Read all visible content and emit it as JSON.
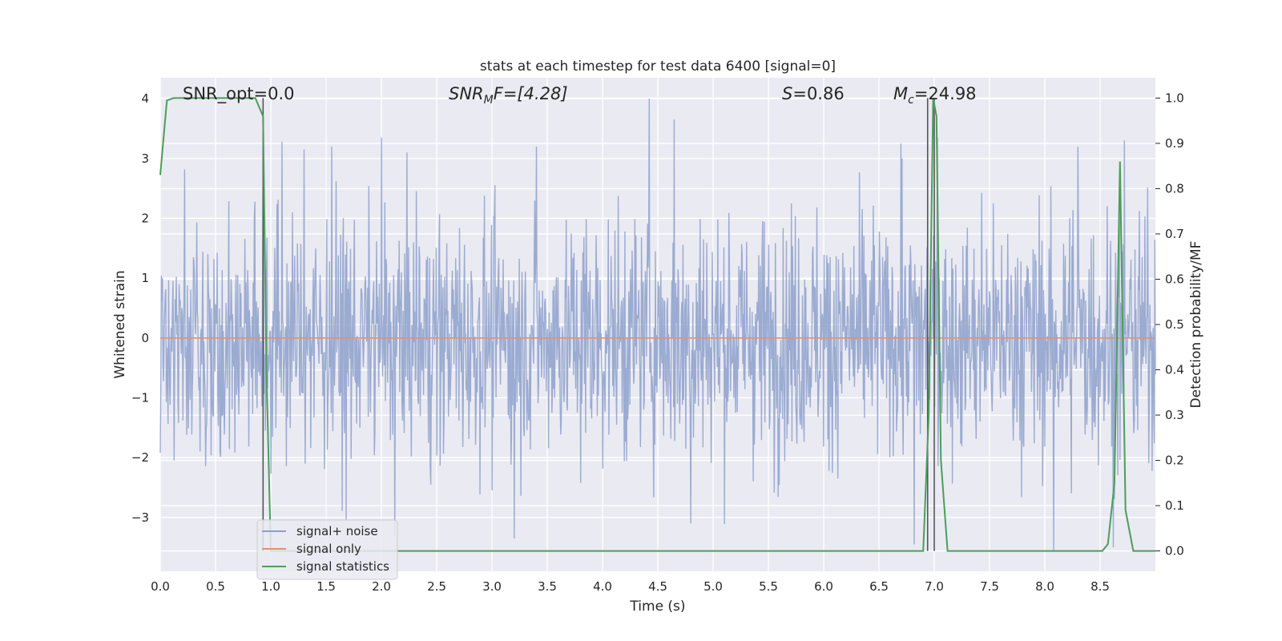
{
  "chart_data": {
    "type": "line",
    "title": "stats at each timestep for test data 6400 [signal=0]",
    "xlabel": "Time (s)",
    "ylabel": "Whitened strain",
    "y2label": "Detection probability/MF",
    "xlim": [
      0,
      9
    ],
    "ylim": [
      -3.9,
      4.35
    ],
    "y2lim": [
      -0.045,
      1.045
    ],
    "xticks": [
      "0.0",
      "0.5",
      "1.0",
      "1.5",
      "2.0",
      "2.5",
      "3.0",
      "3.5",
      "4.0",
      "4.5",
      "5.0",
      "5.5",
      "6.0",
      "6.5",
      "7.0",
      "7.5",
      "8.0",
      "8.5"
    ],
    "xtick_values": [
      0,
      0.5,
      1,
      1.5,
      2,
      2.5,
      3,
      3.5,
      4,
      4.5,
      5,
      5.5,
      6,
      6.5,
      7,
      7.5,
      8,
      8.5
    ],
    "yticks": [
      "4",
      "3",
      "2",
      "1",
      "0",
      "−1",
      "−2",
      "−3"
    ],
    "ytick_values": [
      4,
      3,
      2,
      1,
      0,
      -1,
      -2,
      -3
    ],
    "y2ticks": [
      "1.0",
      "0.9",
      "0.8",
      "0.7",
      "0.6",
      "0.5",
      "0.4",
      "0.3",
      "0.2",
      "0.1",
      "0.0"
    ],
    "y2tick_values": [
      1.0,
      0.9,
      0.8,
      0.7,
      0.6,
      0.5,
      0.4,
      0.3,
      0.2,
      0.1,
      0.0
    ],
    "grid": true,
    "legend_position": "lower-left",
    "annotations": {
      "snr_opt": "SNR_opt=0.0",
      "snr_mf_sym": "SNR",
      "snr_mf_sub": "M",
      "snr_mf_rest": "F=[4.28]",
      "s_sym": "S",
      "s_rest": "=0.86",
      "mc_sym": "M",
      "mc_sub": "c",
      "mc_rest": "=24.98"
    },
    "vertical_lines_x": [
      0.93,
      6.94,
      7.0
    ],
    "series": [
      {
        "name": "signal+ noise",
        "axis": "left",
        "color": "#8da0cb",
        "style": "dense noise",
        "x_range": [
          0,
          9
        ],
        "sample_count": 1800,
        "noise_sigma": 1.0,
        "peak_values": [
          {
            "x": 0.93,
            "y": 3.28
          },
          {
            "x": 1.1,
            "y": 3.28
          },
          {
            "x": 1.3,
            "y": 3.15
          },
          {
            "x": 1.55,
            "y": 3.2
          },
          {
            "x": 2.0,
            "y": 3.35
          },
          {
            "x": 3.4,
            "y": 3.2
          },
          {
            "x": 4.42,
            "y": 4.0
          },
          {
            "x": 4.65,
            "y": 3.65
          },
          {
            "x": 6.7,
            "y": 3.25
          },
          {
            "x": 7.03,
            "y": 3.35
          },
          {
            "x": 8.3,
            "y": 3.2
          },
          {
            "x": 8.72,
            "y": 3.3
          },
          {
            "x": 1.68,
            "y": -3.05
          },
          {
            "x": 2.12,
            "y": -3.3
          },
          {
            "x": 3.2,
            "y": -3.35
          },
          {
            "x": 4.8,
            "y": -3.1
          },
          {
            "x": 6.82,
            "y": -3.45
          },
          {
            "x": 8.08,
            "y": -3.55
          },
          {
            "x": 8.62,
            "y": -3.5
          }
        ]
      },
      {
        "name": "signal only",
        "axis": "left",
        "color": "#e5906d",
        "x": [
          0,
          9
        ],
        "y": [
          0,
          0
        ]
      },
      {
        "name": "signal statistics",
        "axis": "right",
        "color": "#4c9e5a",
        "x": [
          0,
          0.06,
          0.12,
          0.2,
          0.5,
          0.8,
          0.86,
          0.93,
          0.96,
          1.0,
          1.1,
          6.9,
          6.95,
          6.99,
          7.02,
          7.06,
          7.12,
          8.52,
          8.57,
          8.63,
          8.68,
          8.73,
          8.8,
          9.0
        ],
        "y": [
          0.83,
          0.995,
          1.0,
          1.0,
          1.0,
          1.0,
          1.0,
          0.96,
          0.4,
          0.0,
          0.0,
          0.0,
          0.3,
          1.0,
          0.96,
          0.2,
          0.0,
          0.0,
          0.015,
          0.15,
          0.86,
          0.09,
          0.0,
          0.0
        ]
      }
    ]
  }
}
